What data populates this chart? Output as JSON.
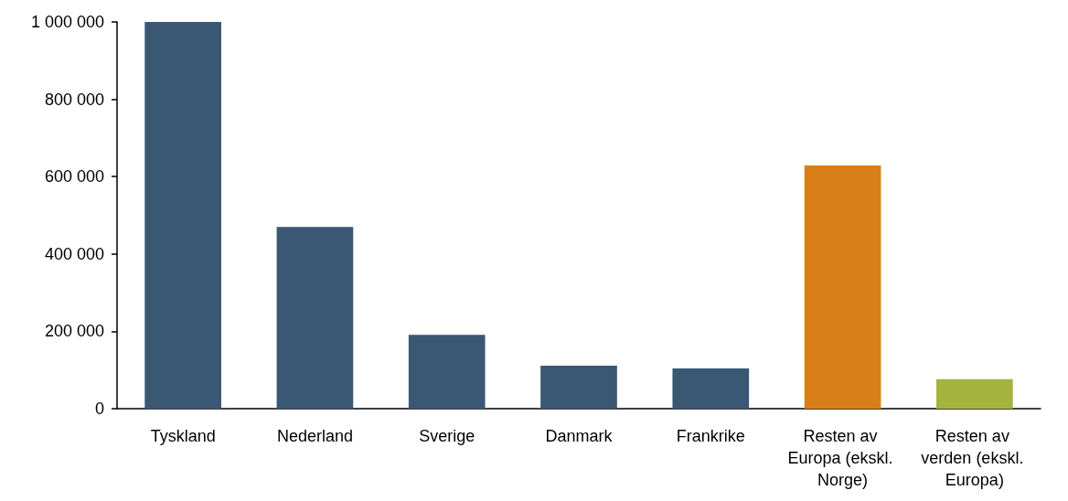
{
  "chart_data": {
    "type": "bar",
    "categories": [
      "Tyskland",
      "Nederland",
      "Sverige",
      "Danmark",
      "Frankrike",
      "Resten av Europa (ekskl. Norge)",
      "Resten av verden (ekskl. Europa)"
    ],
    "values": [
      1000000,
      470000,
      191000,
      111000,
      104000,
      629000,
      76000
    ],
    "colors": [
      "#3a5874",
      "#3a5874",
      "#3a5874",
      "#3a5874",
      "#3a5874",
      "#d87f1a",
      "#a5b33f"
    ],
    "ylim": [
      0,
      1000000
    ],
    "yticks": [
      {
        "value": 0,
        "label": "0"
      },
      {
        "value": 200000,
        "label": "200 000"
      },
      {
        "value": 400000,
        "label": "400 000"
      },
      {
        "value": 600000,
        "label": "600 000"
      },
      {
        "value": 800000,
        "label": "800 000"
      },
      {
        "value": 1000000,
        "label": "1 000 000"
      }
    ],
    "grid": false
  }
}
